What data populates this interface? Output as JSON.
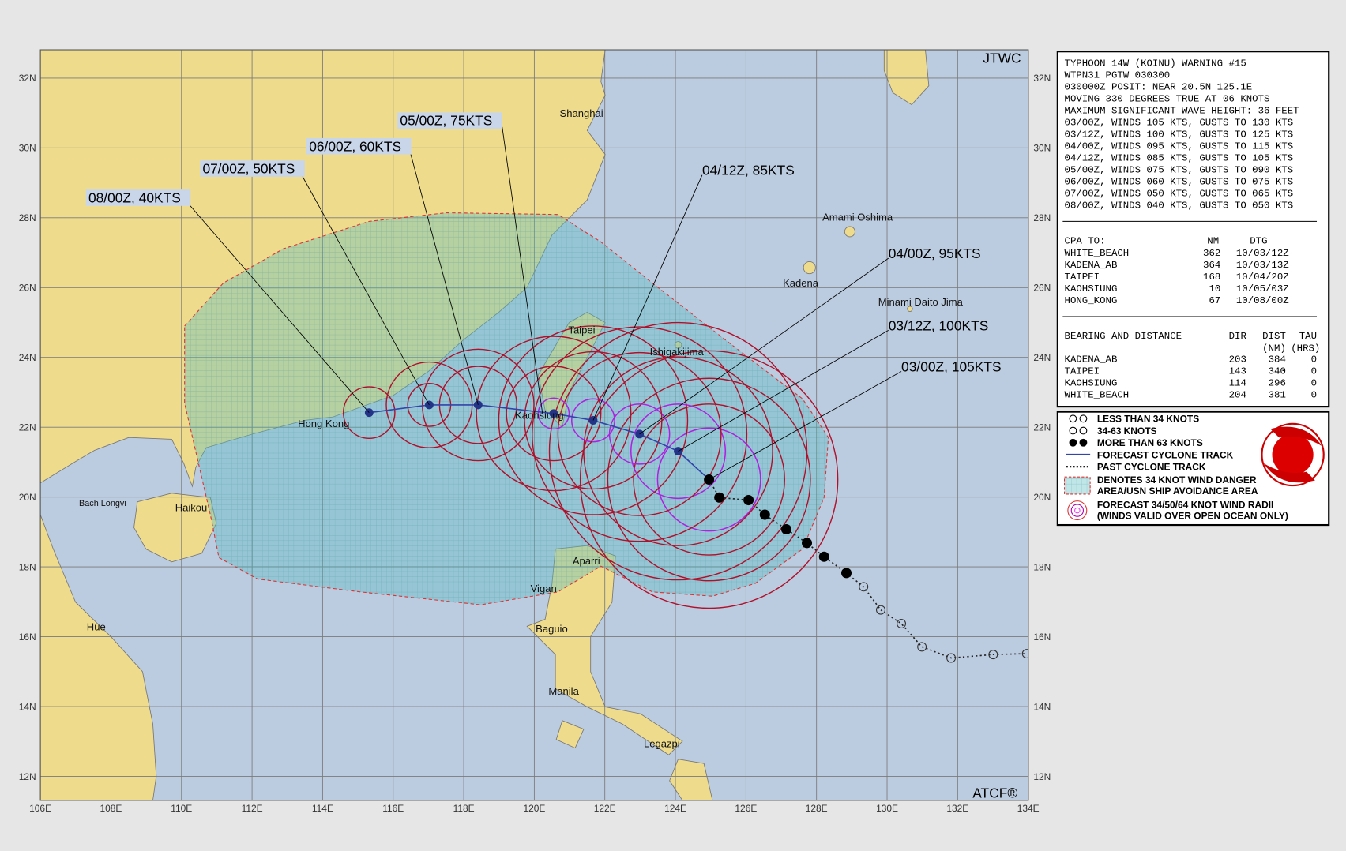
{
  "header": {
    "source": "JTWC",
    "footer": "ATCF®"
  },
  "axes": {
    "lon": [
      "106E",
      "108E",
      "110E",
      "112E",
      "114E",
      "116E",
      "118E",
      "120E",
      "122E",
      "124E",
      "126E",
      "128E",
      "130E",
      "132E",
      "134E"
    ],
    "lat": [
      "32N",
      "30N",
      "28N",
      "26N",
      "24N",
      "22N",
      "20N",
      "18N",
      "16N",
      "14N",
      "12N"
    ]
  },
  "places": [
    "Shanghai",
    "Taipei",
    "Kaohsiung",
    "Hong Kong",
    "Haikou",
    "Bach Longvi",
    "Hue",
    "Aparri",
    "Vigan",
    "Baguio",
    "Manila",
    "Legazpi",
    "Ishigakijima",
    "Kadena",
    "Amami Oshima",
    "Minami Daito Jima"
  ],
  "forecast_labels": [
    "03/00Z, 105KTS",
    "03/12Z, 100KTS",
    "04/00Z, 95KTS",
    "04/12Z, 85KTS",
    "05/00Z, 75KTS",
    "06/00Z, 60KTS",
    "07/00Z, 50KTS",
    "08/00Z, 40KTS"
  ],
  "warning": {
    "lines": [
      "TYPHOON 14W (KOINU) WARNING #15",
      "WTPN31 PGTW 030300",
      "030000Z POSIT: NEAR 20.5N 125.1E",
      "MOVING 330 DEGREES TRUE AT 06 KNOTS",
      "MAXIMUM SIGNIFICANT WAVE HEIGHT: 36 FEET",
      "03/00Z, WINDS 105 KTS, GUSTS TO 130 KTS",
      "03/12Z, WINDS 100 KTS, GUSTS TO 125 KTS",
      "04/00Z, WINDS 095 KTS, GUSTS TO 115 KTS",
      "04/12Z, WINDS 085 KTS, GUSTS TO 105 KTS",
      "05/00Z, WINDS 075 KTS, GUSTS TO 090 KTS",
      "06/00Z, WINDS 060 KTS, GUSTS TO 075 KTS",
      "07/00Z, WINDS 050 KTS, GUSTS TO 065 KTS",
      "08/00Z, WINDS 040 KTS, GUSTS TO 050 KTS"
    ]
  },
  "cpa": {
    "header": [
      "CPA TO:",
      "NM",
      "DTG"
    ],
    "rows": [
      [
        "WHITE_BEACH",
        362,
        "10/03/12Z"
      ],
      [
        "KADENA_AB",
        364,
        "10/03/13Z"
      ],
      [
        "TAIPEI",
        168,
        "10/04/20Z"
      ],
      [
        "KAOHSIUNG",
        10,
        "10/05/03Z"
      ],
      [
        "HONG_KONG",
        67,
        "10/08/00Z"
      ]
    ]
  },
  "bearing": {
    "header": [
      "BEARING AND DISTANCE",
      "DIR",
      "DIST",
      "TAU"
    ],
    "subheader": [
      "(NM)",
      "(HRS)"
    ],
    "rows": [
      [
        "KADENA_AB",
        203,
        384,
        0
      ],
      [
        "TAIPEI",
        143,
        340,
        0
      ],
      [
        "KAOHSIUNG",
        114,
        296,
        0
      ],
      [
        "WHITE_BEACH",
        204,
        381,
        0
      ]
    ]
  },
  "legend": [
    "LESS THAN 34 KNOTS",
    "34-63 KNOTS",
    "MORE THAN 63 KNOTS",
    "FORECAST CYCLONE TRACK",
    "PAST CYCLONE TRACK",
    "DENOTES 34 KNOT WIND DANGER",
    "AREA/USN SHIP AVOIDANCE AREA",
    "FORECAST 34/50/64 KNOT WIND RADII",
    "(WINDS VALID OVER OPEN OCEAN ONLY)"
  ]
}
